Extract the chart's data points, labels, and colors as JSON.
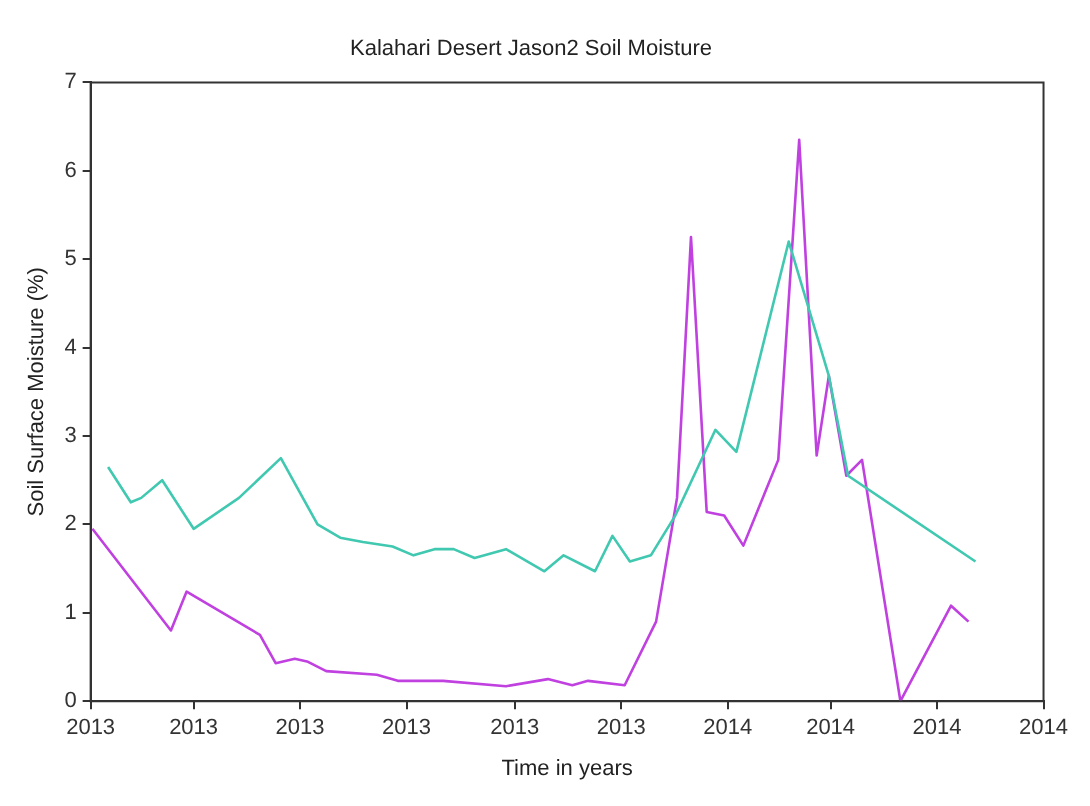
{
  "chart_data": {
    "type": "line",
    "title": "Kalahari Desert Jason2 Soil Moisture",
    "xlabel": "Time in years",
    "ylabel": "Soil Surface Moisture (%)",
    "xlim": [
      "2013-01",
      "2014-07"
    ],
    "xticks": [
      {
        "value": "2013-01",
        "label": "2013"
      },
      {
        "value": "2013-03",
        "label": "2013"
      },
      {
        "value": "2013-05",
        "label": "2013"
      },
      {
        "value": "2013-07",
        "label": "2013"
      },
      {
        "value": "2013-09",
        "label": "2013"
      },
      {
        "value": "2013-11",
        "label": "2013"
      },
      {
        "value": "2014-01",
        "label": "2014"
      },
      {
        "value": "2014-03",
        "label": "2014"
      },
      {
        "value": "2014-05",
        "label": "2014"
      },
      {
        "value": "2014-07",
        "label": "2014"
      }
    ],
    "ylim": [
      0,
      7
    ],
    "yticks": [
      0,
      1,
      2,
      3,
      4,
      5,
      6,
      7
    ],
    "grid": false,
    "legend": false,
    "marker": "none",
    "line_style": "solid",
    "series": [
      {
        "color": "#40c8b0",
        "x": [
          "2013-01-11",
          "2013-01-24",
          "2013-01-30",
          "2013-02-11",
          "2013-03-01",
          "2013-03-27",
          "2013-04-20",
          "2013-05-11",
          "2013-05-24",
          "2013-06-06",
          "2013-06-23",
          "2013-07-05",
          "2013-07-17",
          "2013-07-28",
          "2013-08-09",
          "2013-08-27",
          "2013-09-18",
          "2013-09-29",
          "2013-10-17",
          "2013-10-27",
          "2013-11-06",
          "2013-11-18",
          "2013-12-02",
          "2013-12-25",
          "2014-01-06",
          "2014-02-05",
          "2014-02-28",
          "2014-03-11",
          "2014-05-23"
        ],
        "values": [
          2.65,
          2.25,
          2.3,
          2.5,
          1.95,
          2.3,
          2.75,
          2.0,
          1.85,
          1.8,
          1.75,
          1.65,
          1.72,
          1.72,
          1.62,
          1.72,
          1.47,
          1.65,
          1.47,
          1.87,
          1.58,
          1.65,
          2.1,
          3.07,
          2.82,
          5.2,
          3.68,
          2.55,
          1.58
        ]
      },
      {
        "color": "#c040e0",
        "x": [
          "2013-01-02",
          "2013-02-16",
          "2013-02-25",
          "2013-04-08",
          "2013-04-17",
          "2013-04-28",
          "2013-05-05",
          "2013-05-16",
          "2013-06-14",
          "2013-06-26",
          "2013-07-22",
          "2013-08-27",
          "2013-09-20",
          "2013-10-04",
          "2013-10-13",
          "2013-11-03",
          "2013-11-21",
          "2013-12-03",
          "2013-12-11",
          "2013-12-20",
          "2013-12-30",
          "2014-01-10",
          "2014-01-30",
          "2014-02-11",
          "2014-02-21",
          "2014-02-28",
          "2014-03-10",
          "2014-03-19",
          "2014-04-10",
          "2014-05-09",
          "2014-05-19"
        ],
        "values": [
          1.95,
          0.8,
          1.24,
          0.75,
          0.43,
          0.48,
          0.45,
          0.34,
          0.3,
          0.23,
          0.23,
          0.17,
          0.25,
          0.18,
          0.23,
          0.18,
          0.9,
          2.3,
          5.25,
          2.14,
          2.1,
          1.76,
          2.73,
          6.35,
          2.78,
          3.68,
          2.55,
          2.73,
          0,
          1.08,
          0.9
        ]
      }
    ]
  }
}
